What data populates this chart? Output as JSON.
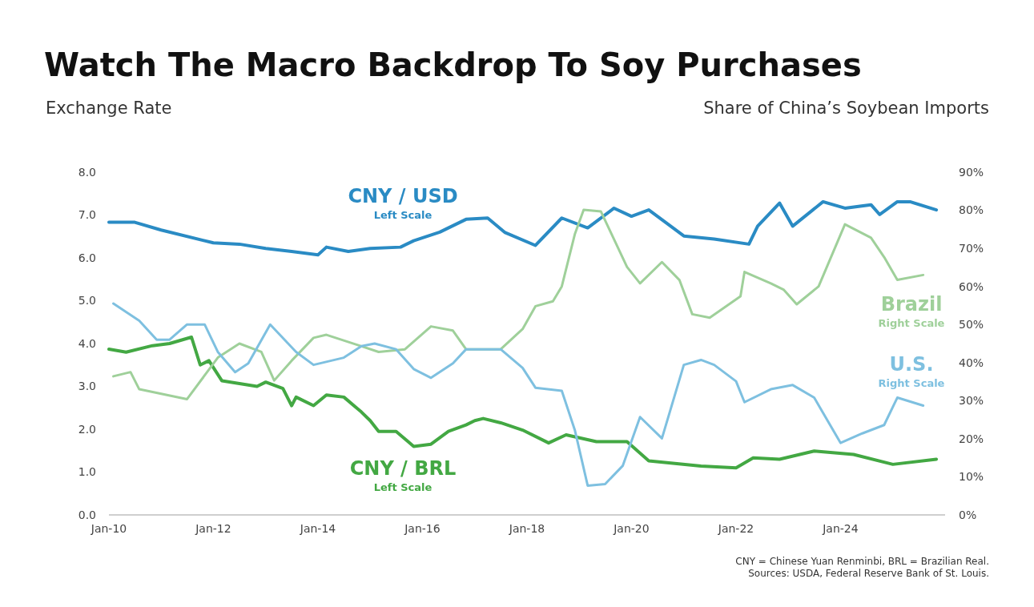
{
  "chart_data": {
    "type": "line",
    "title": "Watch The Macro Backdrop To Soy Purchases",
    "ylabel": "Exchange Rate",
    "y2label": "Share of China’s Soybean Imports",
    "xlim": [
      "2010-01",
      "2026-01"
    ],
    "xticks": [
      {
        "value": "2010-01",
        "label": "Jan-10"
      },
      {
        "value": "2012-01",
        "label": "Jan-12"
      },
      {
        "value": "2014-01",
        "label": "Jan-14"
      },
      {
        "value": "2016-01",
        "label": "Jan-16"
      },
      {
        "value": "2018-01",
        "label": "Jan-18"
      },
      {
        "value": "2020-01",
        "label": "Jan-20"
      },
      {
        "value": "2022-01",
        "label": "Jan-22"
      },
      {
        "value": "2024-01",
        "label": "Jan-24"
      }
    ],
    "ylim": [
      0,
      8
    ],
    "yticks": [
      {
        "value": 0,
        "label": "0.0"
      },
      {
        "value": 1,
        "label": "1.0"
      },
      {
        "value": 2,
        "label": "2.0"
      },
      {
        "value": 3,
        "label": "3.0"
      },
      {
        "value": 4,
        "label": "4.0"
      },
      {
        "value": 5,
        "label": "5.0"
      },
      {
        "value": 6,
        "label": "6.0"
      },
      {
        "value": 7,
        "label": "7.0"
      },
      {
        "value": 8,
        "label": "8.0"
      }
    ],
    "y2lim": [
      0,
      90
    ],
    "y2ticks": [
      {
        "value": 0,
        "label": "0%"
      },
      {
        "value": 10,
        "label": "10%"
      },
      {
        "value": 20,
        "label": "20%"
      },
      {
        "value": 30,
        "label": "30%"
      },
      {
        "value": 40,
        "label": "40%"
      },
      {
        "value": 50,
        "label": "50%"
      },
      {
        "value": 60,
        "label": "60%"
      },
      {
        "value": 70,
        "label": "70%"
      },
      {
        "value": 80,
        "label": "80%"
      },
      {
        "value": 90,
        "label": "90%"
      }
    ],
    "grid": false,
    "series": [
      {
        "name": "CNY / USD",
        "color": "#2a8bc4",
        "axis": "y",
        "x": [
          "2010-01",
          "2010-07",
          "2011-01",
          "2012-01",
          "2012-07",
          "2013-01",
          "2013-07",
          "2014-01",
          "2014-03",
          "2014-08",
          "2015-01",
          "2015-08",
          "2015-11",
          "2016-05",
          "2016-11",
          "2017-04",
          "2017-08",
          "2018-03",
          "2018-09",
          "2019-03",
          "2019-09",
          "2020-01",
          "2020-05",
          "2021-01",
          "2021-08",
          "2022-04",
          "2022-06",
          "2022-11",
          "2023-02",
          "2023-09",
          "2024-02",
          "2024-08",
          "2024-10",
          "2025-02",
          "2025-05",
          "2025-11"
        ],
        "values": [
          6.83,
          6.83,
          6.65,
          6.35,
          6.32,
          6.22,
          6.15,
          6.07,
          6.25,
          6.15,
          6.22,
          6.25,
          6.4,
          6.6,
          6.9,
          6.93,
          6.59,
          6.29,
          6.93,
          6.7,
          7.16,
          6.97,
          7.12,
          6.51,
          6.44,
          6.32,
          6.74,
          7.28,
          6.74,
          7.31,
          7.16,
          7.24,
          7.01,
          7.31,
          7.31,
          7.12
        ]
      },
      {
        "name": "CNY / BRL",
        "color": "#43a843",
        "axis": "y",
        "x": [
          "2010-01",
          "2010-05",
          "2010-11",
          "2011-03",
          "2011-08",
          "2011-10",
          "2011-12",
          "2012-03",
          "2012-11",
          "2013-01",
          "2013-05",
          "2013-07",
          "2013-08",
          "2013-12",
          "2014-03",
          "2014-07",
          "2014-11",
          "2015-01",
          "2015-03",
          "2015-07",
          "2015-11",
          "2016-03",
          "2016-07",
          "2016-11",
          "2017-01",
          "2017-03",
          "2017-07",
          "2017-12",
          "2018-06",
          "2018-10",
          "2019-05",
          "2019-12",
          "2020-05",
          "2021-05",
          "2022-01",
          "2022-05",
          "2022-11",
          "2023-07",
          "2024-04",
          "2025-01",
          "2025-11"
        ],
        "values": [
          3.87,
          3.8,
          3.95,
          4.0,
          4.15,
          3.5,
          3.6,
          3.13,
          3.0,
          3.1,
          2.95,
          2.55,
          2.75,
          2.55,
          2.8,
          2.75,
          2.4,
          2.2,
          1.95,
          1.95,
          1.6,
          1.65,
          1.95,
          2.1,
          2.2,
          2.25,
          2.15,
          1.98,
          1.68,
          1.87,
          1.71,
          1.71,
          1.26,
          1.14,
          1.1,
          1.33,
          1.3,
          1.49,
          1.41,
          1.18,
          1.3
        ]
      },
      {
        "name": "Brazil",
        "color": "#9fd09a",
        "axis": "y2",
        "x": [
          "2010-02",
          "2010-06",
          "2010-08",
          "2011-07",
          "2012-02",
          "2012-07",
          "2012-12",
          "2013-03",
          "2013-07",
          "2013-12",
          "2014-03",
          "2014-11",
          "2015-03",
          "2015-09",
          "2016-03",
          "2016-08",
          "2016-11",
          "2017-07",
          "2017-12",
          "2018-03",
          "2018-07",
          "2018-09",
          "2018-12",
          "2019-02",
          "2019-06",
          "2019-12",
          "2020-03",
          "2020-08",
          "2020-12",
          "2021-03",
          "2021-07",
          "2022-02",
          "2022-03",
          "2022-09",
          "2022-12",
          "2023-03",
          "2023-08",
          "2024-02",
          "2024-08",
          "2024-11",
          "2025-02",
          "2025-08"
        ],
        "values": [
          36.4,
          37.5,
          33,
          30.4,
          41.3,
          45,
          42.8,
          35.3,
          40.5,
          46.5,
          47.3,
          44.3,
          42.8,
          43.5,
          49.5,
          48.4,
          43.5,
          43.5,
          48.8,
          54.8,
          56.1,
          60,
          73.7,
          80.1,
          79.7,
          65.1,
          60.8,
          66.4,
          61.7,
          52.7,
          51.8,
          57.4,
          63.8,
          60.8,
          59.1,
          55.3,
          60,
          76.3,
          72.8,
          67.7,
          61.7,
          63
        ]
      },
      {
        "name": "U.S.",
        "color": "#7ec0e0",
        "axis": "y2",
        "x": [
          "2010-02",
          "2010-08",
          "2010-12",
          "2011-03",
          "2011-07",
          "2011-11",
          "2012-02",
          "2012-06",
          "2012-09",
          "2013-02",
          "2013-08",
          "2013-12",
          "2014-07",
          "2014-11",
          "2015-02",
          "2015-07",
          "2015-11",
          "2016-03",
          "2016-08",
          "2016-11",
          "2017-07",
          "2017-12",
          "2018-03",
          "2018-09",
          "2018-12",
          "2019-03",
          "2019-07",
          "2019-11",
          "2020-03",
          "2020-08",
          "2021-01",
          "2021-05",
          "2021-08",
          "2022-01",
          "2022-03",
          "2022-09",
          "2023-02",
          "2023-07",
          "2024-01",
          "2024-06",
          "2024-11",
          "2025-02",
          "2025-08"
        ],
        "values": [
          55.5,
          51,
          46,
          46,
          50,
          50,
          42.8,
          37.5,
          39.8,
          50,
          42.8,
          39.4,
          41.3,
          44.3,
          45,
          43.5,
          38.3,
          36,
          39.8,
          43.5,
          43.5,
          38.6,
          33.4,
          32.6,
          22.3,
          7.7,
          8.1,
          12.9,
          25.7,
          20.1,
          39.4,
          40.7,
          39.4,
          35.1,
          29.6,
          33,
          34.1,
          30.8,
          18.9,
          21.4,
          23.6,
          30.8,
          28.7
        ]
      }
    ],
    "annotations": [
      "Left Scale",
      "Left Scale",
      "Right Scale",
      "Right Scale",
      "CNY = Chinese Yuan Renminbi, BRL = Brazilian Real.",
      "Sources: USDA, Federal Reserve Bank of St. Louis."
    ]
  }
}
